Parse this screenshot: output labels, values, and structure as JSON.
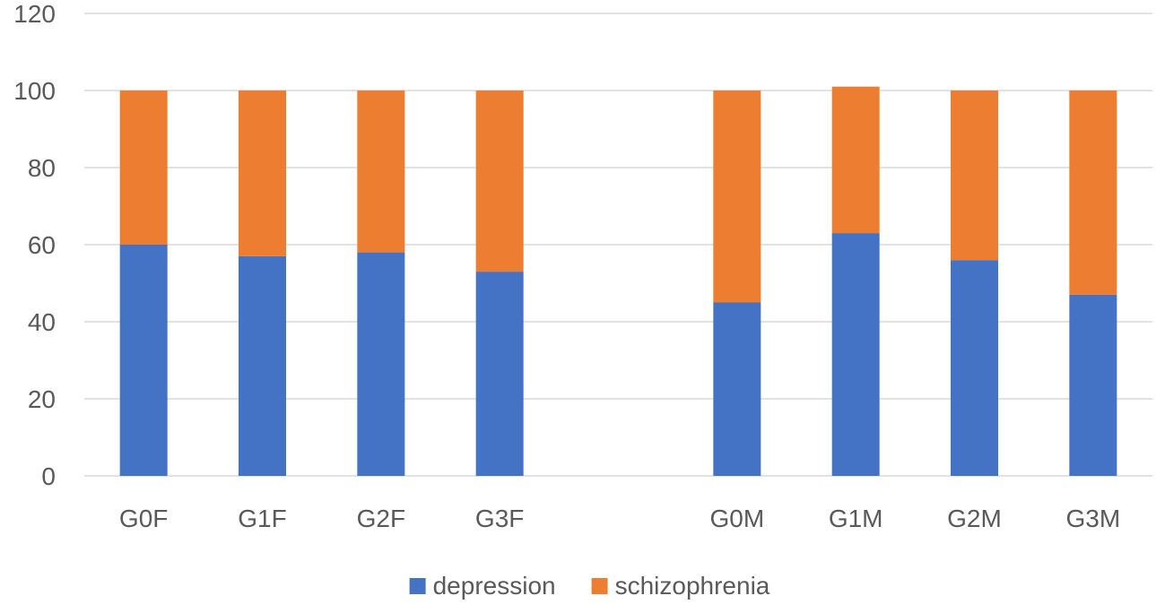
{
  "chart_data": {
    "type": "bar",
    "stacked": true,
    "title": "",
    "xlabel": "",
    "ylabel": "",
    "ylim": [
      0,
      120
    ],
    "yticks": [
      0,
      20,
      40,
      60,
      80,
      100,
      120
    ],
    "grid": true,
    "legend_position": "bottom",
    "categories": [
      "G0F",
      "G1F",
      "G2F",
      "G3F",
      "",
      "G0M",
      "G1M",
      "G2M",
      "G3M"
    ],
    "series": [
      {
        "name": "depression",
        "color": "#4472c4",
        "values": [
          60,
          57,
          58,
          53,
          null,
          45,
          63,
          56,
          47
        ]
      },
      {
        "name": "schizophrenia",
        "color": "#ed7d31",
        "values": [
          40,
          43,
          42,
          47,
          null,
          55,
          38,
          44,
          53
        ]
      }
    ]
  }
}
